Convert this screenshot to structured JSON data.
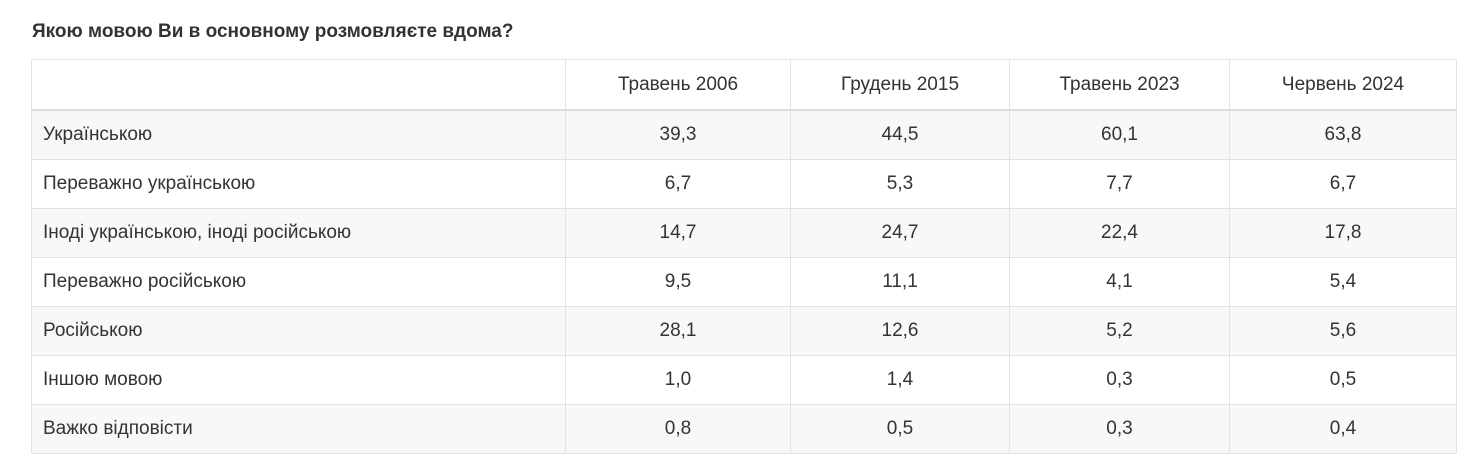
{
  "title": "Якою мовою Ви в основному розмовляєте вдома?",
  "table": {
    "columns": [
      "",
      "Травень 2006",
      "Грудень 2015",
      "Травень 2023",
      "Червень 2024"
    ],
    "rows": [
      {
        "label": "Українською",
        "values": [
          "39,3",
          "44,5",
          "60,1",
          "63,8"
        ]
      },
      {
        "label": "Переважно українською",
        "values": [
          "6,7",
          "5,3",
          "7,7",
          "6,7"
        ]
      },
      {
        "label": "Іноді українською, іноді російською",
        "values": [
          "14,7",
          "24,7",
          "22,4",
          "17,8"
        ]
      },
      {
        "label": "Переважно російською",
        "values": [
          "9,5",
          "11,1",
          "4,1",
          "5,4"
        ]
      },
      {
        "label": "Російською",
        "values": [
          "28,1",
          "12,6",
          "5,2",
          "5,6"
        ]
      },
      {
        "label": "Іншою мовою",
        "values": [
          "1,0",
          "1,4",
          "0,3",
          "0,5"
        ]
      },
      {
        "label": "Важко відповісти",
        "values": [
          "0,8",
          "0,5",
          "0,3",
          "0,4"
        ]
      }
    ]
  }
}
